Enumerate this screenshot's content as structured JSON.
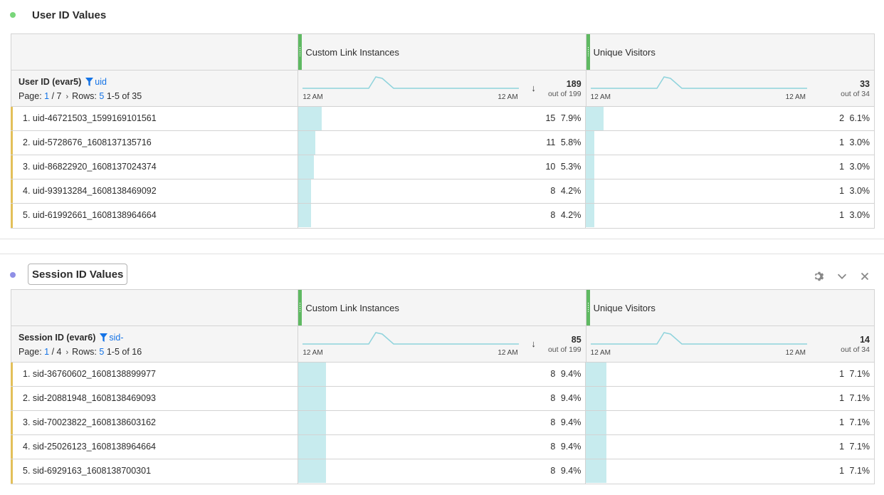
{
  "panels": [
    {
      "title": "User ID Values",
      "dot_color": "#79d67a",
      "boxed": false,
      "dimension": {
        "name": "User ID (evar5)",
        "filter": "uid",
        "page_label": "Page:",
        "page_current": "1",
        "page_total": "/ 7",
        "rows_label": "Rows:",
        "rows_value": "5",
        "range": "1-5 of 35"
      },
      "metrics": [
        {
          "label": "Custom Link Instances",
          "total": "189",
          "out_of": "out of 199",
          "tick_start": "12 AM",
          "tick_end": "12 AM",
          "sorted": true
        },
        {
          "label": "Unique Visitors",
          "total": "33",
          "out_of": "out of 34",
          "tick_start": "12 AM",
          "tick_end": "12 AM",
          "sorted": false
        }
      ],
      "rows": [
        {
          "label": "1. uid-46721503_1599169101561",
          "v1": "15",
          "p1": "7.9%",
          "f1": 0.079,
          "v2": "2",
          "p2": "6.1%",
          "f2": 0.061
        },
        {
          "label": "2. uid-5728676_1608137135716",
          "v1": "11",
          "p1": "5.8%",
          "f1": 0.058,
          "v2": "1",
          "p2": "3.0%",
          "f2": 0.03
        },
        {
          "label": "3. uid-86822920_1608137024374",
          "v1": "10",
          "p1": "5.3%",
          "f1": 0.053,
          "v2": "1",
          "p2": "3.0%",
          "f2": 0.03
        },
        {
          "label": "4. uid-93913284_1608138469092",
          "v1": "8",
          "p1": "4.2%",
          "f1": 0.042,
          "v2": "1",
          "p2": "3.0%",
          "f2": 0.03
        },
        {
          "label": "5. uid-61992661_1608138964664",
          "v1": "8",
          "p1": "4.2%",
          "f1": 0.042,
          "v2": "1",
          "p2": "3.0%",
          "f2": 0.03
        }
      ]
    },
    {
      "title": "Session ID Values",
      "dot_color": "#8f8fe6",
      "boxed": true,
      "dimension": {
        "name": "Session ID (evar6)",
        "filter": "sid-",
        "page_label": "Page:",
        "page_current": "1",
        "page_total": "/ 4",
        "rows_label": "Rows:",
        "rows_value": "5",
        "range": "1-5 of 16"
      },
      "metrics": [
        {
          "label": "Custom Link Instances",
          "total": "85",
          "out_of": "out of 199",
          "tick_start": "12 AM",
          "tick_end": "12 AM",
          "sorted": true
        },
        {
          "label": "Unique Visitors",
          "total": "14",
          "out_of": "out of 34",
          "tick_start": "12 AM",
          "tick_end": "12 AM",
          "sorted": false
        }
      ],
      "rows": [
        {
          "label": "1. sid-36760602_1608138899977",
          "v1": "8",
          "p1": "9.4%",
          "f1": 0.094,
          "v2": "1",
          "p2": "7.1%",
          "f2": 0.071
        },
        {
          "label": "2. sid-20881948_1608138469093",
          "v1": "8",
          "p1": "9.4%",
          "f1": 0.094,
          "v2": "1",
          "p2": "7.1%",
          "f2": 0.071
        },
        {
          "label": "3. sid-70023822_1608138603162",
          "v1": "8",
          "p1": "9.4%",
          "f1": 0.094,
          "v2": "1",
          "p2": "7.1%",
          "f2": 0.071
        },
        {
          "label": "4. sid-25026123_1608138964664",
          "v1": "8",
          "p1": "9.4%",
          "f1": 0.094,
          "v2": "1",
          "p2": "7.1%",
          "f2": 0.071
        },
        {
          "label": "5. sid-6929163_1608138700301",
          "v1": "8",
          "p1": "9.4%",
          "f1": 0.094,
          "v2": "1",
          "p2": "7.1%",
          "f2": 0.071
        }
      ]
    }
  ],
  "panel_icons": [
    "gear-icon",
    "chevron-down-icon",
    "close-icon"
  ],
  "colors": {
    "metric_grip": "#5fb962",
    "bar": "#c7ebee",
    "sparkline": "#8fd3dc",
    "row_marker": "#e3c05a",
    "link": "#1473e6"
  }
}
